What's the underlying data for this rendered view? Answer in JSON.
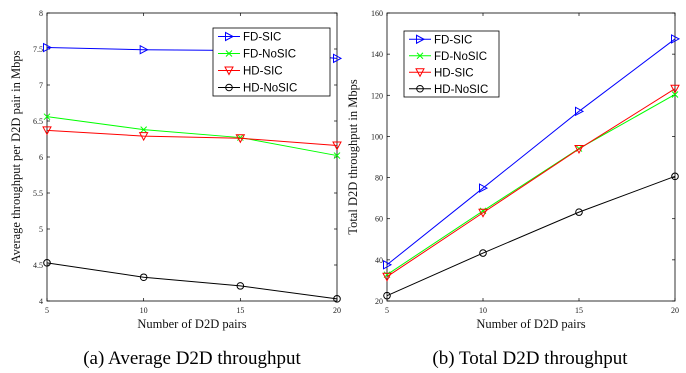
{
  "chart_data": [
    {
      "type": "line",
      "caption": "(a) Average D2D throughput",
      "xlabel": "Number of D2D pairs",
      "ylabel": "Average throughput per D2D pair in Mbps",
      "x": [
        5,
        10,
        15,
        20
      ],
      "xlim": [
        5,
        20
      ],
      "ylim": [
        4,
        8
      ],
      "xticks": [
        5,
        10,
        15,
        20
      ],
      "yticks": [
        4,
        4.5,
        5,
        5.5,
        6,
        6.5,
        7,
        7.5,
        8
      ],
      "legend_position": "top-right",
      "grid": false,
      "series": [
        {
          "name": "FD-SIC",
          "values": [
            7.52,
            7.49,
            7.48,
            7.37
          ],
          "color": "#0000ff",
          "marker": "triangle-right"
        },
        {
          "name": "FD-NoSIC",
          "values": [
            6.56,
            6.38,
            6.27,
            6.02
          ],
          "color": "#00ff00",
          "marker": "x"
        },
        {
          "name": "HD-SIC",
          "values": [
            6.37,
            6.29,
            6.26,
            6.16
          ],
          "color": "#ff0000",
          "marker": "triangle-down"
        },
        {
          "name": "HD-NoSIC",
          "values": [
            4.53,
            4.33,
            4.21,
            4.03
          ],
          "color": "#000000",
          "marker": "circle"
        }
      ]
    },
    {
      "type": "line",
      "caption": "(b) Total D2D throughput",
      "xlabel": "Number of D2D pairs",
      "ylabel": "Total D2D throughput in Mbps",
      "x": [
        5,
        10,
        15,
        20
      ],
      "xlim": [
        5,
        20
      ],
      "ylim": [
        20,
        160
      ],
      "xticks": [
        5,
        10,
        15,
        20
      ],
      "yticks": [
        20,
        40,
        60,
        80,
        100,
        120,
        140,
        160
      ],
      "legend_position": "top-left",
      "grid": false,
      "series": [
        {
          "name": "FD-SIC",
          "values": [
            37.6,
            74.9,
            112.2,
            147.4
          ],
          "color": "#0000ff",
          "marker": "triangle-right"
        },
        {
          "name": "FD-NoSIC",
          "values": [
            32.8,
            63.8,
            94.1,
            120.4
          ],
          "color": "#00ff00",
          "marker": "x"
        },
        {
          "name": "HD-SIC",
          "values": [
            31.8,
            62.9,
            93.9,
            123.2
          ],
          "color": "#ff0000",
          "marker": "triangle-down"
        },
        {
          "name": "HD-NoSIC",
          "values": [
            22.6,
            43.3,
            63.2,
            80.6
          ],
          "color": "#000000",
          "marker": "circle"
        }
      ]
    }
  ]
}
